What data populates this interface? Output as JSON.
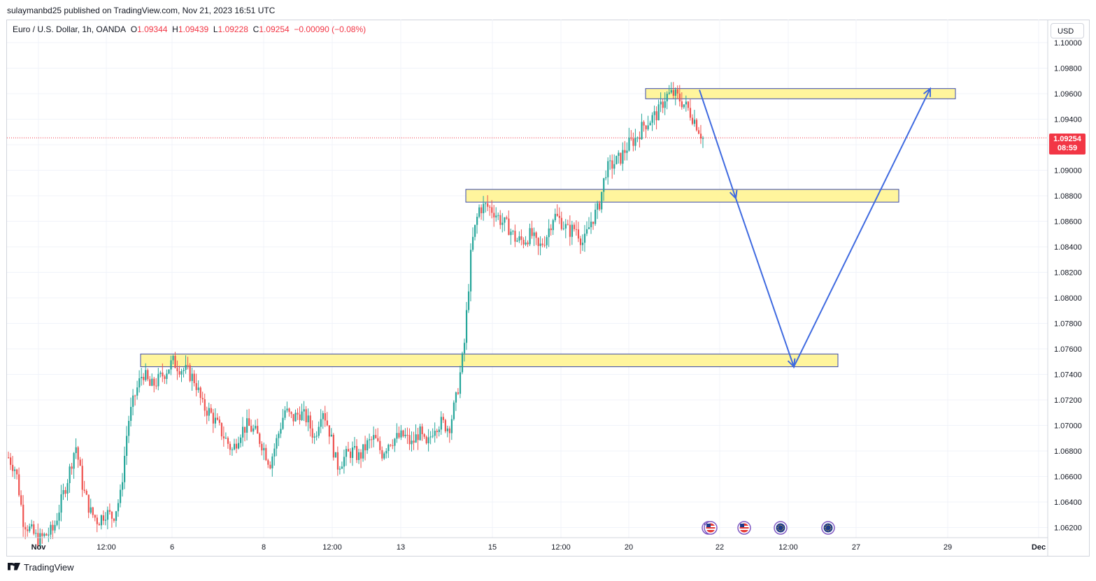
{
  "header": {
    "published": "sulaymanbd25 published on TradingView.com, Nov 21, 2023 16:51 UTC"
  },
  "symbol": {
    "name": "Euro / U.S. Dollar, 1h, OANDA",
    "o_label": "O",
    "o": "1.09344",
    "h_label": "H",
    "h": "1.09439",
    "l_label": "L",
    "l": "1.09228",
    "c_label": "C",
    "c": "1.09254",
    "change": "−0.00090 (−0.08%)"
  },
  "currency_button": "USD",
  "last_price": {
    "value": "1.09254",
    "countdown": "08:59"
  },
  "footer": {
    "brand": "TradingView"
  },
  "colors": {
    "up": "#26a69a",
    "down": "#ef5350",
    "zone_fill": "#fff59d",
    "zone_border": "#3949ab",
    "arrow": "#3f6ae0",
    "last_price": "#f23645"
  },
  "chart_data": {
    "type": "candlestick",
    "symbol": "EURUSD",
    "timeframe": "1h",
    "y_ticks": [
      "1.10000",
      "1.09800",
      "1.09600",
      "1.09400",
      "1.09200",
      "1.09000",
      "1.08800",
      "1.08600",
      "1.08400",
      "1.08200",
      "1.08000",
      "1.07800",
      "1.07600",
      "1.07400",
      "1.07200",
      "1.07000",
      "1.06800",
      "1.06600",
      "1.06400",
      "1.06200"
    ],
    "x_ticks": [
      "Nov",
      "12:00",
      "6",
      "8",
      "12:00",
      "13",
      "15",
      "12:00",
      "20",
      "22",
      "12:00",
      "27",
      "29",
      "Dec"
    ],
    "price_path": [
      [
        0,
        1.0675
      ],
      [
        1,
        1.0665
      ],
      [
        2,
        1.0625
      ],
      [
        4,
        1.061
      ],
      [
        6,
        1.0618
      ],
      [
        8,
        1.066
      ],
      [
        9,
        1.0685
      ],
      [
        10,
        1.065
      ],
      [
        11,
        1.0632
      ],
      [
        12,
        1.0625
      ],
      [
        13,
        1.0632
      ],
      [
        14,
        1.0628
      ],
      [
        15,
        1.0645
      ],
      [
        16,
        1.0702
      ],
      [
        17,
        1.0725
      ],
      [
        18,
        1.0742
      ],
      [
        19,
        1.073
      ],
      [
        20,
        1.0735
      ],
      [
        21,
        1.0742
      ],
      [
        22,
        1.075
      ],
      [
        23,
        1.0745
      ],
      [
        24,
        1.0742
      ],
      [
        25,
        1.0735
      ],
      [
        26,
        1.0715
      ],
      [
        27,
        1.071
      ],
      [
        28,
        1.07
      ],
      [
        29,
        1.069
      ],
      [
        30,
        1.068
      ],
      [
        31,
        1.0695
      ],
      [
        32,
        1.07
      ],
      [
        33,
        1.0695
      ],
      [
        34,
        1.0685
      ],
      [
        35,
        1.067
      ],
      [
        36,
        1.069
      ],
      [
        37,
        1.0712
      ],
      [
        38,
        1.0705
      ],
      [
        39,
        1.071
      ],
      [
        40,
        1.0705
      ],
      [
        41,
        1.069
      ],
      [
        42,
        1.0715
      ],
      [
        43,
        1.0695
      ],
      [
        44,
        1.0668
      ],
      [
        45,
        1.0675
      ],
      [
        46,
        1.068
      ],
      [
        47,
        1.0675
      ],
      [
        48,
        1.0685
      ],
      [
        49,
        1.069
      ],
      [
        50,
        1.0678
      ],
      [
        51,
        1.0688
      ],
      [
        52,
        1.069
      ],
      [
        53,
        1.0692
      ],
      [
        54,
        1.0685
      ],
      [
        55,
        1.0695
      ],
      [
        56,
        1.0682
      ],
      [
        57,
        1.07
      ],
      [
        58,
        1.0702
      ],
      [
        59,
        1.0698
      ],
      [
        60,
        1.0722
      ],
      [
        61,
        1.076
      ],
      [
        62,
        1.084
      ],
      [
        63,
        1.087
      ],
      [
        64,
        1.0872
      ],
      [
        65,
        1.0868
      ],
      [
        66,
        1.086
      ],
      [
        67,
        1.0855
      ],
      [
        68,
        1.0845
      ],
      [
        69,
        1.0845
      ],
      [
        70,
        1.085
      ],
      [
        71,
        1.0838
      ],
      [
        72,
        1.0848
      ],
      [
        73,
        1.0865
      ],
      [
        74,
        1.086
      ],
      [
        75,
        1.0852
      ],
      [
        76,
        1.0855
      ],
      [
        77,
        1.0842
      ],
      [
        78,
        1.086
      ],
      [
        79,
        1.087
      ],
      [
        80,
        1.09
      ],
      [
        81,
        1.0905
      ],
      [
        82,
        1.091
      ],
      [
        83,
        1.092
      ],
      [
        84,
        1.0925
      ],
      [
        85,
        1.0935
      ],
      [
        86,
        1.094
      ],
      [
        87,
        1.0945
      ],
      [
        88,
        1.0958
      ],
      [
        89,
        1.096
      ],
      [
        90,
        1.0955
      ],
      [
        91,
        1.0948
      ],
      [
        92,
        1.0938
      ],
      [
        93,
        1.0925
      ]
    ],
    "zones": [
      {
        "top": 1.0964,
        "bottom": 1.0956
      },
      {
        "top": 1.0885,
        "bottom": 1.0875
      },
      {
        "top": 1.0756,
        "bottom": 1.0746
      }
    ],
    "projection_path": [
      1.0963,
      1.0878,
      1.0746,
      1.0964
    ],
    "last_price": 1.09254
  }
}
